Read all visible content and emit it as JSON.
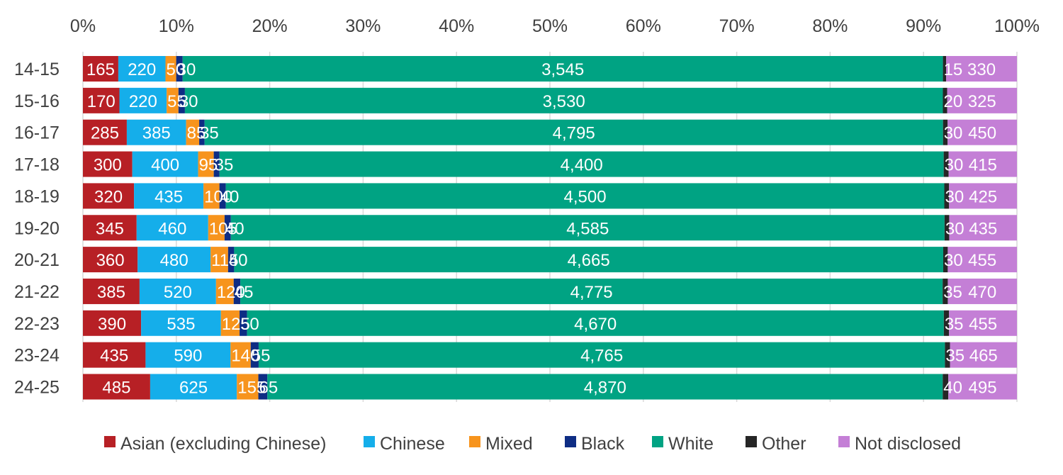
{
  "chart_data": {
    "type": "bar",
    "orientation": "horizontal",
    "stacked": "100%",
    "categories": [
      "14-15",
      "15-16",
      "16-17",
      "17-18",
      "18-19",
      "19-20",
      "20-21",
      "21-22",
      "22-23",
      "23-24",
      "24-25"
    ],
    "series": [
      {
        "name": "Asian (excluding Chinese)",
        "color": "#B72025",
        "values": [
          165,
          170,
          285,
          300,
          320,
          345,
          360,
          385,
          390,
          435,
          485
        ],
        "labels": [
          "165",
          "170",
          "285",
          "300",
          "320",
          "345",
          "360",
          "385",
          "390",
          "435",
          "485"
        ]
      },
      {
        "name": "Chinese",
        "color": "#15AEEA",
        "values": [
          220,
          220,
          385,
          400,
          435,
          460,
          480,
          520,
          535,
          590,
          625
        ],
        "labels": [
          "220",
          "220",
          "385",
          "400",
          "435",
          "460",
          "480",
          "520",
          "535",
          "590",
          "625"
        ]
      },
      {
        "name": "Mixed",
        "color": "#F7941D",
        "values": [
          50,
          55,
          85,
          95,
          100,
          105,
          115,
          120,
          125,
          140,
          155
        ],
        "labels": [
          "50",
          "55",
          "85",
          "95",
          "100",
          "105",
          "115",
          "120",
          "125",
          "140",
          "155"
        ]
      },
      {
        "name": "Black",
        "color": "#0E2D84",
        "values": [
          30,
          30,
          35,
          35,
          40,
          40,
          40,
          45,
          50,
          55,
          65
        ],
        "labels": [
          "30",
          "30",
          "35",
          "35",
          "40",
          "40",
          "40",
          "45",
          "50",
          "55",
          "65"
        ]
      },
      {
        "name": "White",
        "color": "#00A383",
        "values": [
          3545,
          3530,
          4795,
          4400,
          4500,
          4585,
          4665,
          4775,
          4670,
          4765,
          4870
        ],
        "labels": [
          "3,545",
          "3,530",
          "4,795",
          "4,400",
          "4,500",
          "4,585",
          "4,665",
          "4,775",
          "4,670",
          "4,765",
          "4,870"
        ]
      },
      {
        "name": "Other",
        "color": "#262626",
        "values": [
          15,
          20,
          30,
          30,
          30,
          30,
          30,
          35,
          35,
          35,
          40
        ],
        "labels": [
          "15",
          "20",
          "30",
          "30",
          "30",
          "30",
          "30",
          "35",
          "35",
          "35",
          "40"
        ]
      },
      {
        "name": "Not disclosed",
        "color": "#C47FD6",
        "values": [
          330,
          325,
          450,
          415,
          425,
          435,
          455,
          470,
          455,
          465,
          495
        ],
        "labels": [
          "330",
          "325",
          "450",
          "415",
          "425",
          "435",
          "455",
          "470",
          "455",
          "465",
          "495"
        ]
      }
    ],
    "xticks": [
      "0%",
      "10%",
      "20%",
      "30%",
      "40%",
      "50%",
      "60%",
      "70%",
      "80%",
      "90%",
      "100%"
    ],
    "xlim": [
      0,
      100
    ],
    "title": "",
    "xlabel": "",
    "ylabel": "",
    "grid": "vertical",
    "gridColor": "#D9D9D9",
    "legend": "bottom",
    "axisLabelColor": "#404040"
  }
}
